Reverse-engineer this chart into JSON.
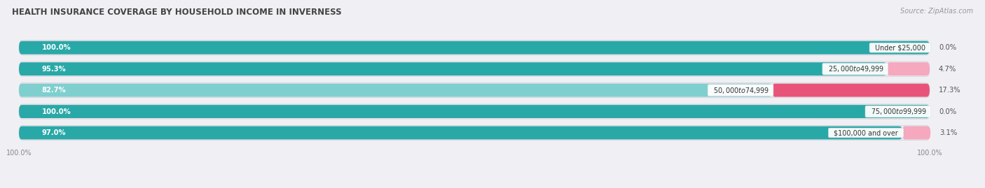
{
  "title": "HEALTH INSURANCE COVERAGE BY HOUSEHOLD INCOME IN INVERNESS",
  "source": "Source: ZipAtlas.com",
  "categories": [
    "Under $25,000",
    "$25,000 to $49,999",
    "$50,000 to $74,999",
    "$75,000 to $99,999",
    "$100,000 and over"
  ],
  "with_coverage": [
    100.0,
    95.3,
    82.7,
    100.0,
    97.0
  ],
  "without_coverage": [
    0.0,
    4.7,
    17.3,
    0.0,
    3.1
  ],
  "color_with_dark": "#29a8a8",
  "color_with_light": "#7fcfcf",
  "color_without_dark": "#e8537a",
  "color_without_light": "#f5a8be",
  "bar_row_bg": "#e8e8ec",
  "background_color": "#f0f0f4",
  "title_fontsize": 8.5,
  "label_fontsize": 7.2,
  "tick_fontsize": 7,
  "legend_fontsize": 7.5,
  "source_fontsize": 7,
  "xlim": [
    0,
    100
  ]
}
